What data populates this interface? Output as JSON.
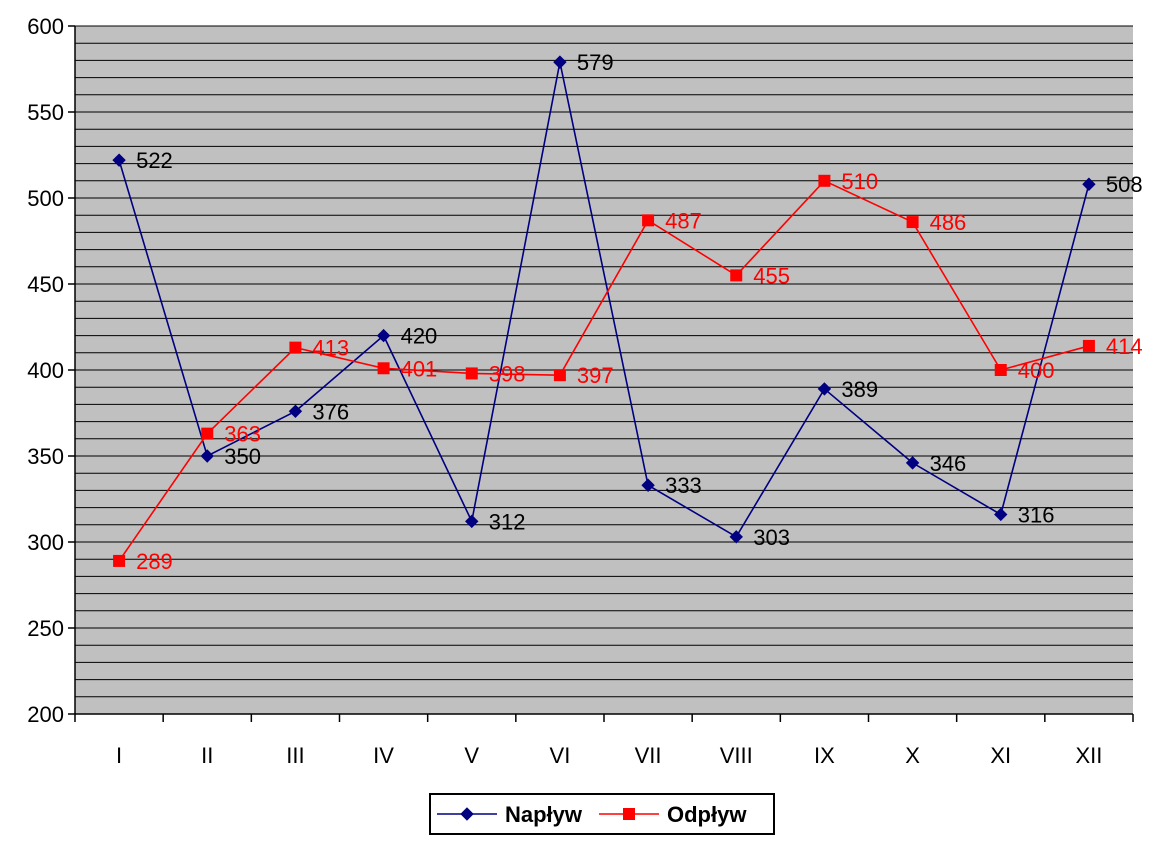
{
  "chart_data": {
    "type": "line",
    "categories": [
      "I",
      "II",
      "III",
      "IV",
      "V",
      "VI",
      "VII",
      "VIII",
      "IX",
      "X",
      "XI",
      "XII"
    ],
    "series": [
      {
        "name": "Napływ",
        "values": [
          522,
          350,
          376,
          420,
          312,
          579,
          333,
          303,
          389,
          346,
          316,
          508
        ],
        "color": "#000080",
        "label_color": "#000000",
        "marker": "diamond"
      },
      {
        "name": "Odpływ",
        "values": [
          289,
          363,
          413,
          401,
          398,
          397,
          487,
          455,
          510,
          486,
          400,
          414
        ],
        "color": "#ff0000",
        "label_color": "#ff0000",
        "marker": "square"
      }
    ],
    "ylim": [
      200,
      600
    ],
    "yticks": [
      200,
      250,
      300,
      350,
      400,
      450,
      500,
      550,
      600
    ],
    "ytick_labels": [
      "200",
      "250",
      "300",
      "350",
      "400",
      "450",
      "500",
      "550",
      "600"
    ],
    "grid": true,
    "plot_background": "#c0c0c0",
    "legend_position": "bottom"
  }
}
